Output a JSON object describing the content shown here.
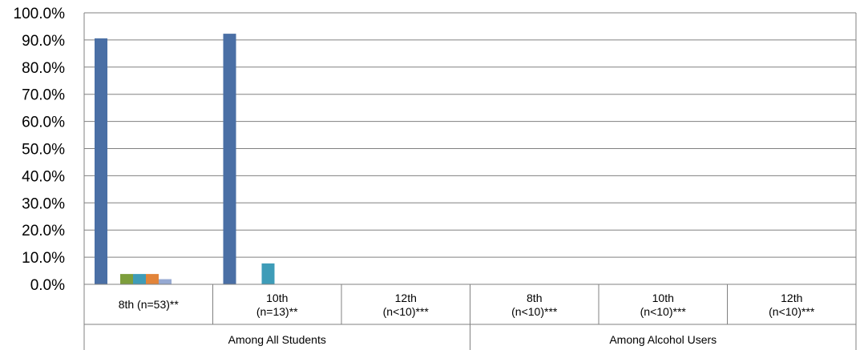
{
  "chart_data": {
    "type": "bar",
    "title": "",
    "xlabel": "",
    "ylabel": "",
    "ylim": [
      0,
      100
    ],
    "grid": true,
    "y_ticks": [
      "0.0%",
      "10.0%",
      "20.0%",
      "30.0%",
      "40.0%",
      "50.0%",
      "60.0%",
      "70.0%",
      "80.0%",
      "90.0%",
      "100.0%"
    ],
    "categories": [
      {
        "label": [
          "8th (n=53)**"
        ],
        "group": "Among All Students"
      },
      {
        "label": [
          "10th",
          "(n=13)**"
        ],
        "group": "Among All Students"
      },
      {
        "label": [
          "12th",
          "(n<10)***"
        ],
        "group": "Among All Students"
      },
      {
        "label": [
          "8th",
          "(n<10)***"
        ],
        "group": "Among Alcohol Users"
      },
      {
        "label": [
          "10th",
          "(n<10)***"
        ],
        "group": "Among Alcohol Users"
      },
      {
        "label": [
          "12th",
          "(n<10)***"
        ],
        "group": "Among Alcohol Users"
      }
    ],
    "groups": [
      "Among All Students",
      "Among Alcohol Users"
    ],
    "series": [
      {
        "color": "#4A6FA5",
        "values": [
          90.6,
          92.3,
          0,
          0,
          0,
          0
        ]
      },
      {
        "color": "#9BBB59",
        "values": [
          0,
          0,
          0,
          0,
          0,
          0
        ]
      },
      {
        "color": "#7D9E3C",
        "values": [
          3.8,
          0,
          0,
          0,
          0,
          0
        ]
      },
      {
        "color": "#3E9CB8",
        "values": [
          3.8,
          7.7,
          0,
          0,
          0,
          0
        ]
      },
      {
        "color": "#E2843A",
        "values": [
          3.8,
          0,
          0,
          0,
          0,
          0
        ]
      },
      {
        "color": "#95A9D2",
        "values": [
          1.9,
          0,
          0,
          0,
          0,
          0
        ]
      }
    ]
  }
}
